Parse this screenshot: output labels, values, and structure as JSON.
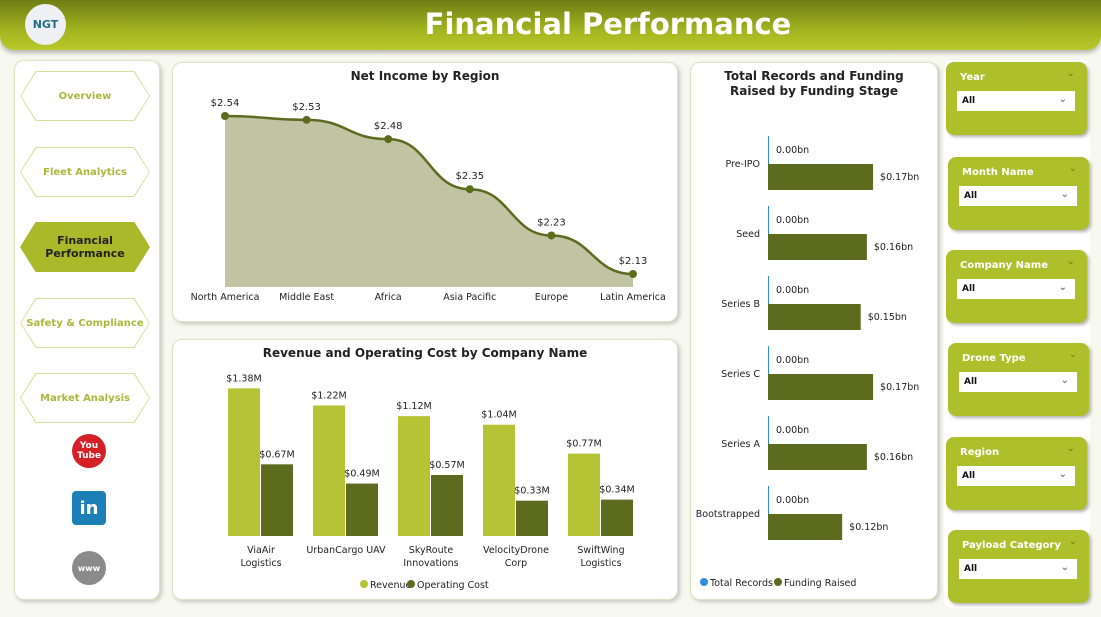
{
  "header": {
    "title": "Financial Performance",
    "logo_text": "NGT"
  },
  "nav": {
    "items": [
      {
        "label": "Overview"
      },
      {
        "label": "Fleet Analytics"
      },
      {
        "label": "Financial Performance",
        "active": true
      },
      {
        "label": "Safety & Compliance"
      },
      {
        "label": "Market Analysis"
      }
    ],
    "social": [
      {
        "icon": "youtube-icon",
        "label": "You Tube"
      },
      {
        "icon": "linkedin-icon",
        "label": "in"
      },
      {
        "icon": "globe-icon",
        "label": "www"
      }
    ]
  },
  "colors": {
    "light": "#b5c334",
    "dark": "#5d6b1f",
    "area": "#c0c4a2",
    "records": "#2e8fe0"
  },
  "chart_data": [
    {
      "type": "area",
      "title": "Net Income by Region",
      "categories": [
        "North America",
        "Middle East",
        "Africa",
        "Asia Pacific",
        "Europe",
        "Latin America"
      ],
      "values": [
        2.54,
        2.53,
        2.48,
        2.35,
        2.23,
        2.13
      ],
      "labels": [
        "$2.54",
        "$2.53",
        "$2.48",
        "$2.35",
        "$2.23",
        "$2.13"
      ]
    },
    {
      "type": "bar",
      "title": "Revenue and Operating Cost by Company Name",
      "categories": [
        "ViaAir Logistics",
        "UrbanCargo UAV",
        "SkyRoute Innovations",
        "VelocityDrone Corp",
        "SwiftWing Logistics"
      ],
      "series": [
        {
          "name": "Revenue",
          "values": [
            1.38,
            1.22,
            1.12,
            1.04,
            0.77
          ],
          "labels": [
            "$1.38M",
            "$1.22M",
            "$1.12M",
            "$1.04M",
            "$0.77M"
          ]
        },
        {
          "name": "Operating Cost",
          "values": [
            0.67,
            0.49,
            0.57,
            0.33,
            0.34
          ],
          "labels": [
            "$0.67M",
            "$0.49M",
            "$0.57M",
            "$0.33M",
            "$0.34M"
          ]
        }
      ],
      "legend": "bottom"
    },
    {
      "type": "bar",
      "orientation": "horizontal",
      "title": "Total Records and Funding Raised by Funding Stage",
      "categories": [
        "Pre-IPO",
        "Seed",
        "Series B",
        "Series C",
        "Series A",
        "Bootstrapped"
      ],
      "series": [
        {
          "name": "Total Records",
          "values": [
            0,
            0,
            0,
            0,
            0,
            0
          ],
          "labels": [
            "0.00bn",
            "0.00bn",
            "0.00bn",
            "0.00bn",
            "0.00bn",
            "0.00bn"
          ]
        },
        {
          "name": "Funding Raised",
          "values": [
            0.17,
            0.16,
            0.15,
            0.17,
            0.16,
            0.12
          ],
          "labels": [
            "$0.17bn",
            "$0.16bn",
            "$0.15bn",
            "$0.17bn",
            "$0.16bn",
            "$0.12bn"
          ]
        }
      ],
      "legend": "bottom-left"
    }
  ],
  "filters": [
    {
      "label": "Year",
      "value": "All"
    },
    {
      "label": "Month Name",
      "value": "All"
    },
    {
      "label": "Company Name",
      "value": "All"
    },
    {
      "label": "Drone Type",
      "value": "All"
    },
    {
      "label": "Region",
      "value": "All"
    },
    {
      "label": "Payload Category",
      "value": "All"
    }
  ]
}
